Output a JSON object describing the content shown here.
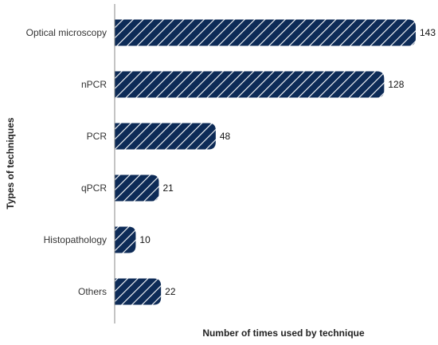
{
  "chart_data": {
    "type": "bar",
    "orientation": "horizontal",
    "categories": [
      "Optical microscopy",
      "nPCR",
      "PCR",
      "qPCR",
      "Histopathology",
      "Others"
    ],
    "values": [
      143,
      128,
      48,
      21,
      10,
      22
    ],
    "title": "",
    "xlabel": "Number of times used by technique",
    "ylabel": "Types of techniques",
    "xlim": [
      0,
      143
    ],
    "grid": false,
    "legend": "none",
    "bar_color": "#0d2b57",
    "hatch_color": "#ffffff",
    "value_labels": [
      "143",
      "128",
      "48",
      "21",
      "10",
      "22"
    ]
  }
}
